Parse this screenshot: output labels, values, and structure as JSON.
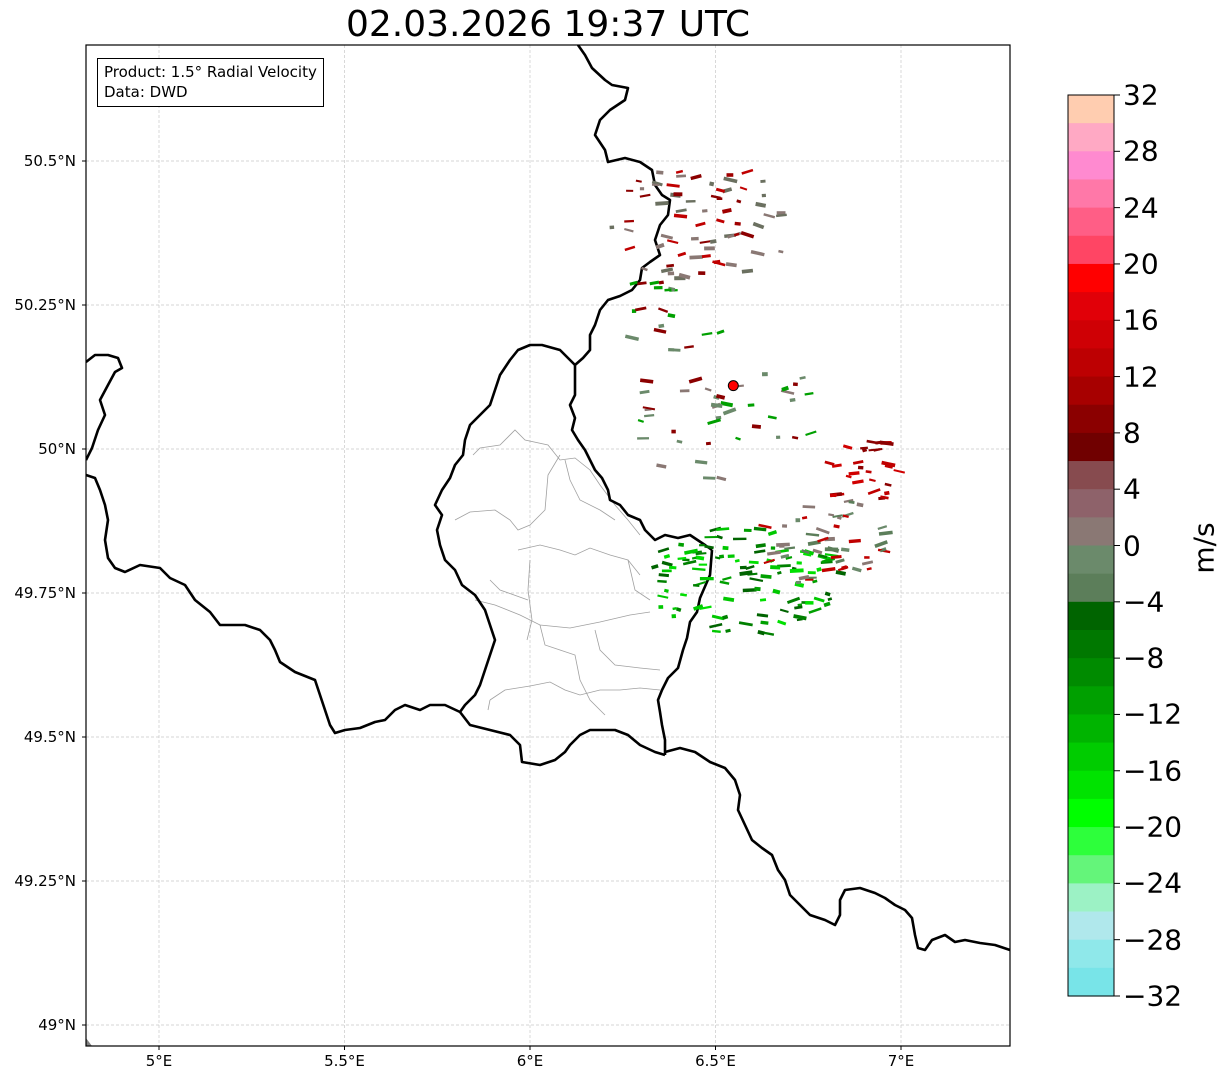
{
  "title": "02.03.2026 19:37 UTC",
  "info": {
    "product": "Product: 1.5° Radial Velocity",
    "data": "Data: DWD"
  },
  "lat_ticks": [
    {
      "value": 50.5,
      "label": "50.5°N"
    },
    {
      "value": 50.25,
      "label": "50.25°N"
    },
    {
      "value": 50.0,
      "label": "50°N"
    },
    {
      "value": 49.75,
      "label": "49.75°N"
    },
    {
      "value": 49.5,
      "label": "49.5°N"
    },
    {
      "value": 49.25,
      "label": "49.25°N"
    },
    {
      "value": 49.0,
      "label": "49°N"
    }
  ],
  "lon_ticks": [
    {
      "value": 5.0,
      "label": "5°E"
    },
    {
      "value": 5.5,
      "label": "5.5°E"
    },
    {
      "value": 6.0,
      "label": "6°E"
    },
    {
      "value": 6.5,
      "label": "6.5°E"
    },
    {
      "value": 7.0,
      "label": "7°E"
    }
  ],
  "extent": {
    "lon": [
      4.8,
      7.3
    ],
    "lat": [
      48.95,
      50.7
    ]
  },
  "radar_site": {
    "lon": 6.548,
    "lat": 50.11
  },
  "colorbar": {
    "label": "m/s",
    "min": -32,
    "max": 32,
    "ticks": [
      32,
      28,
      24,
      20,
      16,
      12,
      8,
      4,
      0,
      -4,
      -8,
      -12,
      -16,
      -20,
      -24,
      -28,
      -32
    ],
    "tick_labels": [
      "32",
      "28",
      "24",
      "20",
      "16",
      "12",
      "8",
      "4",
      "0",
      "−4",
      "−8",
      "−12",
      "−16",
      "−20",
      "−24",
      "−28",
      "−32"
    ],
    "colors_top_to_bottom": [
      "#ffcdb0",
      "#ffa9c4",
      "#ff8ad0",
      "#ff78a8",
      "#ff5e86",
      "#ff4564",
      "#ff0000",
      "#e10008",
      "#cf0005",
      "#bd0002",
      "#a70000",
      "#8b0000",
      "#700000",
      "#874b4f",
      "#8e626a",
      "#8a7874",
      "#6b8a6b",
      "#5c7e5a",
      "#006400",
      "#007800",
      "#008b00",
      "#00a000",
      "#00b400",
      "#00cc00",
      "#00e300",
      "#00ff00",
      "#2dff3b",
      "#64f57a",
      "#9cf2c5",
      "#b0e8ec",
      "#8fe8ea",
      "#78e4e8"
    ]
  },
  "colors": {
    "border": "#000000",
    "admin": "#a0a0a0",
    "grid": "#c8c8c8",
    "radar_site": "#ff0000"
  }
}
